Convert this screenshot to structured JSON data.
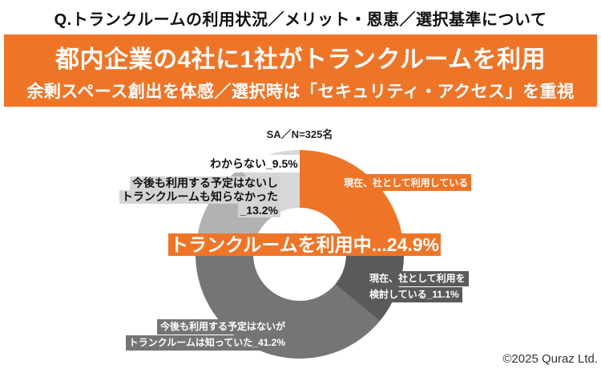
{
  "page": {
    "title": "Q.トランクルームの利用状況／メリット・恩恵／選択基準について"
  },
  "banner": {
    "headline": "都内企業の4社に1社がトランクルームを利用",
    "subheadline": "余剰スペース創出を体感／選択時は「セキュリティ・アクセス」を重視",
    "bg_color": "#EE7528",
    "text_color": "#FFFFFF"
  },
  "chart_data": {
    "type": "pie",
    "subtype": "donut",
    "title": "SA／N=325名",
    "sample_size": 325,
    "start_angle_deg": 0,
    "direction": "clockwise",
    "segments": [
      {
        "label": "現在、社として利用している",
        "value": 24.9,
        "color": "#EE7528"
      },
      {
        "label": "現在、社として利用を検討している",
        "value": 11.1,
        "color": "#5A5A5A"
      },
      {
        "label": "今後も利用する予定はないがトランクルームは知っていた",
        "value": 41.2,
        "color": "#767474"
      },
      {
        "label": "今後も利用する予定はないしトランクルームも知らなかった",
        "value": 13.2,
        "color": "#B2B2B2"
      },
      {
        "label": "わからない",
        "value": 9.5,
        "color": "#D8D8D8"
      }
    ],
    "center_callout": "トランクルームを利用中...24.9%"
  },
  "chart_labels": {
    "sample": "SA／N=325名",
    "using_line1": "現在、社として利用している",
    "using_value": "24.9%",
    "considering_line1": "現在、社として利用を",
    "considering_line2": "検討している_11.1%",
    "knew_line1": "今後も利用する予定はないが",
    "knew_line2": "トランクルームは知っていた_41.2%",
    "unknown_line1": "今後も利用する予定はないし",
    "unknown_line2": "トランクルームも知らなかった",
    "unknown_line3": "_13.2%",
    "dontknow": "わからない_9.5%",
    "center_callout": "トランクルームを利用中...24.9%"
  },
  "footer": {
    "copyright": "©2025 Quraz Ltd."
  }
}
